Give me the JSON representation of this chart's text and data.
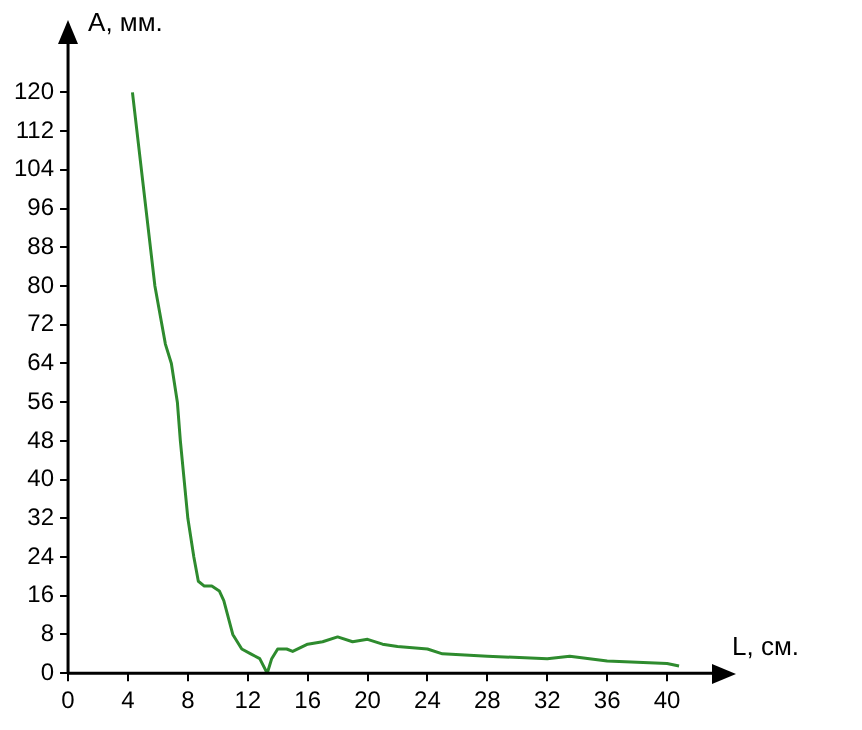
{
  "chart_data": {
    "type": "line",
    "xlabel": "L, см.",
    "ylabel": "A, мм.",
    "xlim": [
      0,
      43
    ],
    "ylim": [
      0,
      130
    ],
    "xticks": [
      0,
      4,
      8,
      12,
      16,
      20,
      24,
      28,
      32,
      36,
      40
    ],
    "yticks": [
      0,
      8,
      16,
      24,
      32,
      40,
      48,
      56,
      64,
      72,
      80,
      88,
      96,
      104,
      112,
      120
    ],
    "series": [
      {
        "color": "#2e8b2e",
        "x": [
          4.3,
          4.9,
          5.8,
          6.5,
          6.9,
          7.3,
          7.5,
          8.0,
          8.4,
          8.7,
          9.1,
          9.6,
          10.1,
          10.4,
          11.0,
          11.6,
          12.2,
          12.8,
          13.3,
          13.6,
          14.0,
          14.6,
          15.0,
          16.0,
          17.0,
          18.0,
          19.0,
          20.0,
          21.0,
          22.0,
          24.0,
          25.0,
          28.0,
          32.0,
          33.5,
          36.0,
          40.0,
          40.8
        ],
        "values": [
          120,
          104,
          80,
          68,
          64,
          56,
          48,
          32,
          24,
          19,
          18,
          18,
          17,
          15,
          8,
          5,
          4,
          3,
          0,
          3,
          5,
          5,
          4.5,
          6,
          6.5,
          7.5,
          6.5,
          7,
          6,
          5.5,
          5,
          4,
          3.5,
          3,
          3.5,
          2.5,
          2,
          1.5
        ]
      }
    ],
    "grid": false,
    "legend": false,
    "marker": "none",
    "line_style": "solid"
  }
}
